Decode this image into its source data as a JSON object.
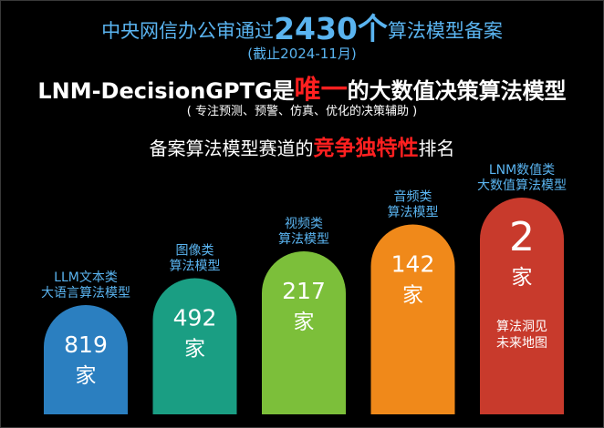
{
  "header": {
    "title_pre": "中央网信办公审通过",
    "title_number": "2430个",
    "title_post": "算法模型备案",
    "subtitle": "(截止2024-11月)",
    "headline_pre": "LNM-DecisionGPTG是",
    "headline_highlight": "唯一",
    "headline_post": "的大数值决策算法模型",
    "headline_note": "( 专注预测、预警、仿真、优化的决策辅助 )",
    "section_pre": "备案算法模型赛道的",
    "section_highlight": "竞争独特性",
    "section_post": "排名"
  },
  "colors": {
    "background": "#000000",
    "label_blue": "#5ab4f0",
    "highlight_red": "#ff2020"
  },
  "chart_data": {
    "type": "bar",
    "categories": [
      [
        "LLM文本类",
        "大语言算法模型"
      ],
      [
        "图像类",
        "算法模型"
      ],
      [
        "视频类",
        "算法模型"
      ],
      [
        "音频类",
        "算法模型"
      ],
      [
        "LNM数值类",
        "大数值算法模型"
      ]
    ],
    "values": [
      819,
      492,
      217,
      142,
      2
    ],
    "value_labels": [
      "819",
      "492",
      "217",
      "142",
      "2"
    ],
    "unit": "家",
    "colors": [
      "#2b7fc0",
      "#1a9e83",
      "#7cbf3a",
      "#f0891a",
      "#c83a2c"
    ],
    "annotation": [
      "算法洞见",
      "未来地图"
    ]
  }
}
